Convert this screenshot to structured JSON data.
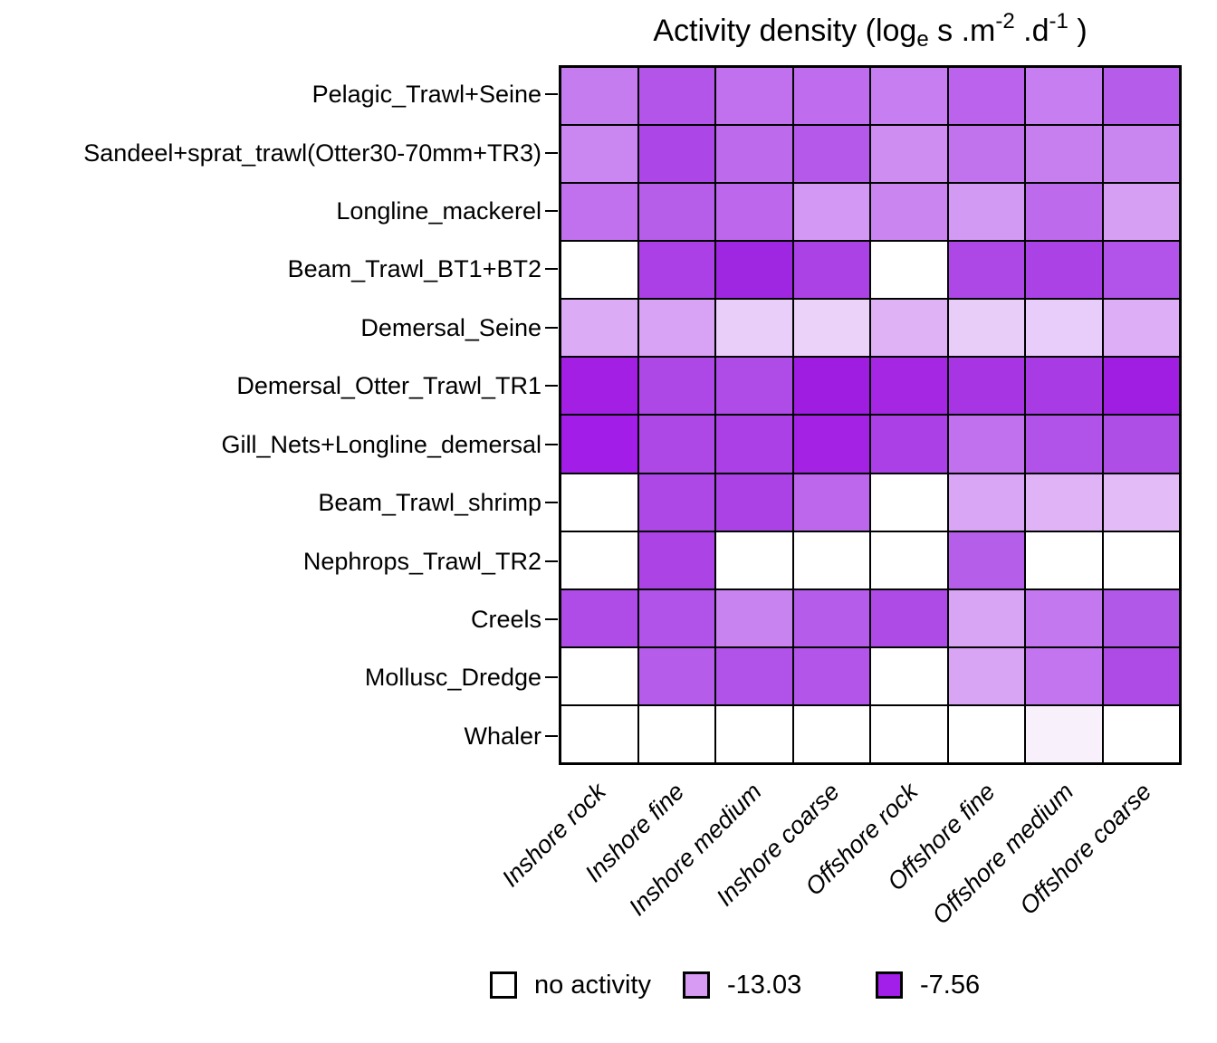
{
  "title": {
    "prefix": "Activity density (log",
    "sub_e": "e",
    "mid1": " s .m",
    "sup1": "-2",
    "mid2": " .d",
    "sup2": "-1",
    "suffix": " )"
  },
  "legend": {
    "items": [
      {
        "label": "no activity",
        "color": "#FFFFFF"
      },
      {
        "label": "-13.03",
        "color": "#D79BF4"
      },
      {
        "label": "-7.56",
        "color": "#A21EE9"
      }
    ]
  },
  "chart_data": {
    "type": "heatmap",
    "title": "Activity density (log_e s .m^-2 .d^-1 )",
    "rows": [
      "Pelagic_Trawl+Seine",
      "Sandeel+sprat_trawl(Otter30-70mm+TR3)",
      "Longline_mackerel",
      "Beam_Trawl_BT1+BT2",
      "Demersal_Seine",
      "Demersal_Otter_Trawl_TR1",
      "Gill_Nets+Longline_demersal",
      "Beam_Trawl_shrimp",
      "Nephrops_Trawl_TR2",
      "Creels",
      "Mollusc_Dredge",
      "Whaler"
    ],
    "columns": [
      "Inshore rock",
      "Inshore fine",
      "Inshore medium",
      "Inshore coarse",
      "Offshore rock",
      "Offshore fine",
      "Offshore medium",
      "Offshore coarse"
    ],
    "legend_scale": {
      "no_activity_color": "#FFFFFF",
      "light_value": -13.03,
      "light_color": "#D79BF4",
      "dark_value": -7.56,
      "dark_color": "#A21EE9"
    },
    "cell_colors": [
      [
        "#C57CEF",
        "#B355E9",
        "#C170EE",
        "#BF6CEE",
        "#C67EF0",
        "#BB63EC",
        "#C67EF0",
        "#B65CEA"
      ],
      [
        "#CB87F1",
        "#AC46E6",
        "#BE6AED",
        "#B459E9",
        "#CD8DF1",
        "#C173EE",
        "#C77FEF",
        "#CA86F0"
      ],
      [
        "#C170EE",
        "#B65EEA",
        "#BD68EC",
        "#D398F3",
        "#CA85F0",
        "#D29AF3",
        "#BD6AED",
        "#D79FF4"
      ],
      [
        "#FFFFFF",
        "#AA40E5",
        "#9F27E2",
        "#AB42E5",
        "#FFFFFF",
        "#AD48E6",
        "#AB42E5",
        "#B254E9"
      ],
      [
        "#DCABF5",
        "#D8A3F4",
        "#E9CEF9",
        "#EBD2F8",
        "#DFB2F6",
        "#E9CDF9",
        "#E8CCF9",
        "#DDAEF5"
      ],
      [
        "#A31FE3",
        "#AD48E6",
        "#AF4CE7",
        "#9F1CE1",
        "#A527E4",
        "#A835E4",
        "#A93BE5",
        "#A01EE2"
      ],
      [
        "#A21EE8",
        "#AD48E6",
        "#AA40E5",
        "#A322E3",
        "#AA40E5",
        "#C170EE",
        "#B152E8",
        "#AF4EE7"
      ],
      [
        "#FFFFFF",
        "#AD48E6",
        "#AB42E5",
        "#BD68EC",
        "#FFFFFF",
        "#D9A6F5",
        "#E0B3F6",
        "#E3BBF7"
      ],
      [
        "#FFFFFF",
        "#AB43E5",
        "#FFFFFF",
        "#FFFFFF",
        "#FFFFFF",
        "#B55EE9",
        "#FFFFFF",
        "#FFFFFF"
      ],
      [
        "#AF4CE7",
        "#B152E8",
        "#C983F0",
        "#B55CEA",
        "#AE4BE7",
        "#D8A4F4",
        "#C478EF",
        "#B258E9"
      ],
      [
        "#FFFFFF",
        "#B55CEA",
        "#B152E8",
        "#B355E9",
        "#FFFFFF",
        "#D8A4F4",
        "#C374EF",
        "#AE4BE7"
      ],
      [
        "#FFFFFF",
        "#FFFFFF",
        "#FFFFFF",
        "#FFFFFF",
        "#FFFFFF",
        "#FFFFFF",
        "#F8F0FB",
        "#FFFFFF"
      ]
    ],
    "values_estimated": [
      [
        -11.7,
        -10.0,
        -11.2,
        -11.0,
        -11.8,
        -10.6,
        -11.8,
        -10.3
      ],
      [
        -12.2,
        -9.3,
        -10.9,
        -10.1,
        -12.4,
        -11.3,
        -11.8,
        -12.1
      ],
      [
        -11.2,
        -10.4,
        -10.8,
        -12.9,
        -12.1,
        -13.0,
        -10.9,
        -13.2
      ],
      [
        null,
        -9.0,
        -8.0,
        -9.1,
        null,
        -9.4,
        -9.1,
        -9.9
      ],
      [
        -13.7,
        -13.4,
        -15.3,
        -15.4,
        -14.0,
        -15.2,
        -15.2,
        -13.9
      ],
      [
        -7.6,
        -9.4,
        -9.6,
        -7.5,
        -7.9,
        -8.6,
        -8.8,
        -7.6
      ],
      [
        -7.6,
        -9.4,
        -9.0,
        -7.7,
        -9.0,
        -11.2,
        -9.8,
        -9.7
      ],
      [
        null,
        -9.4,
        -9.1,
        -10.8,
        null,
        -13.5,
        -14.1,
        -14.4
      ],
      [
        null,
        -9.2,
        null,
        null,
        null,
        -10.4,
        null,
        null
      ],
      [
        -9.6,
        -9.8,
        -12.0,
        -10.3,
        -9.5,
        -13.4,
        -11.6,
        -10.1
      ],
      [
        null,
        -10.3,
        -9.8,
        -10.0,
        null,
        -13.4,
        -11.2,
        -9.5
      ],
      [
        null,
        null,
        null,
        null,
        null,
        null,
        -16.8,
        null
      ]
    ]
  }
}
